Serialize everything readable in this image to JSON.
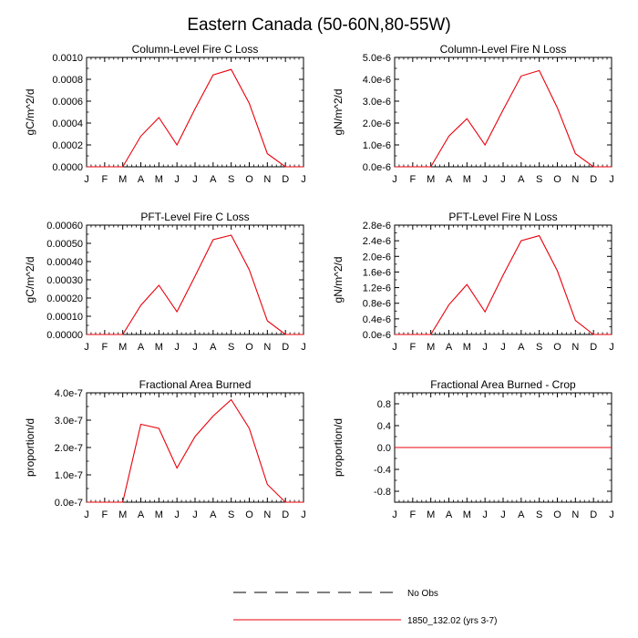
{
  "figure": {
    "title": "Eastern Canada (50-60N,80-55W)"
  },
  "month_labels": [
    "J",
    "F",
    "M",
    "A",
    "M",
    "J",
    "J",
    "A",
    "S",
    "O",
    "N",
    "D",
    "J"
  ],
  "legend": [
    {
      "label": "No Obs",
      "style": "dashed",
      "color": "#000000"
    },
    {
      "label": "1850_132.02 (yrs 3-7)",
      "style": "solid",
      "color": "#e8000b"
    }
  ],
  "chart_data": [
    {
      "type": "line",
      "title": "Column-Level Fire C Loss",
      "ylabel": "gC/m^2/d",
      "ylim": [
        0,
        0.001
      ],
      "yticks": [
        0,
        0.0002,
        0.0004,
        0.0006,
        0.0008,
        0.001
      ],
      "ytick_labels": [
        "0.0000",
        "0.0002",
        "0.0004",
        "0.0006",
        "0.0008",
        "0.0010"
      ],
      "x": [
        0,
        1,
        2,
        3,
        4,
        5,
        6,
        7,
        8,
        9,
        10,
        11,
        12
      ],
      "series": [
        {
          "color": "#e8000b",
          "values": [
            0,
            0,
            0,
            0.00028,
            0.00045,
            0.0002,
            0.00053,
            0.00084,
            0.00089,
            0.00058,
            0.00012,
            0,
            0
          ]
        }
      ]
    },
    {
      "type": "line",
      "title": "Column-Level Fire N Loss",
      "ylabel": "gN/m^2/d",
      "ylim": [
        0,
        5e-06
      ],
      "yticks": [
        0,
        1e-06,
        2e-06,
        3e-06,
        4e-06,
        5e-06
      ],
      "ytick_labels": [
        "0.0e-6",
        "1.0e-6",
        "2.0e-6",
        "3.0e-6",
        "4.0e-6",
        "5.0e-6"
      ],
      "x": [
        0,
        1,
        2,
        3,
        4,
        5,
        6,
        7,
        8,
        9,
        10,
        11,
        12
      ],
      "series": [
        {
          "color": "#e8000b",
          "values": [
            0,
            0,
            0,
            1.4e-06,
            2.2e-06,
            1e-06,
            2.6e-06,
            4.15e-06,
            4.4e-06,
            2.7e-06,
            6e-07,
            0,
            0
          ]
        }
      ]
    },
    {
      "type": "line",
      "title": "PFT-Level Fire C Loss",
      "ylabel": "gC/m^2/d",
      "ylim": [
        0,
        0.0006
      ],
      "yticks": [
        0,
        0.0001,
        0.0002,
        0.0003,
        0.0004,
        0.0005,
        0.0006
      ],
      "ytick_labels": [
        "0.00000",
        "0.00010",
        "0.00020",
        "0.00030",
        "0.00040",
        "0.00050",
        "0.00060"
      ],
      "x": [
        0,
        1,
        2,
        3,
        4,
        5,
        6,
        7,
        8,
        9,
        10,
        11,
        12
      ],
      "series": [
        {
          "color": "#e8000b",
          "values": [
            0,
            0,
            0,
            0.00016,
            0.00027,
            0.000125,
            0.00032,
            0.00052,
            0.000545,
            0.000355,
            7.5e-05,
            0,
            0
          ]
        }
      ]
    },
    {
      "type": "line",
      "title": "PFT-Level Fire N Loss",
      "ylabel": "gN/m^2/d",
      "ylim": [
        0,
        2.8e-06
      ],
      "yticks": [
        0,
        4e-07,
        8e-07,
        1.2e-06,
        1.6e-06,
        2e-06,
        2.4e-06,
        2.8e-06
      ],
      "ytick_labels": [
        "0.0e-6",
        "0.4e-6",
        "0.8e-6",
        "1.2e-6",
        "1.6e-6",
        "2.0e-6",
        "2.4e-6",
        "2.8e-6"
      ],
      "x": [
        0,
        1,
        2,
        3,
        4,
        5,
        6,
        7,
        8,
        9,
        10,
        11,
        12
      ],
      "series": [
        {
          "color": "#e8000b",
          "values": [
            0,
            0,
            0,
            7.6e-07,
            1.28e-06,
            5.8e-07,
            1.52e-06,
            2.4e-06,
            2.53e-06,
            1.63e-06,
            3.6e-07,
            0,
            0
          ]
        }
      ]
    },
    {
      "type": "line",
      "title": "Fractional Area Burned",
      "ylabel": "proportion/d",
      "ylim": [
        0,
        4e-07
      ],
      "yticks": [
        0,
        1e-07,
        2e-07,
        3e-07,
        4e-07
      ],
      "ytick_labels": [
        "0.0e-7",
        "1.0e-7",
        "2.0e-7",
        "3.0e-7",
        "4.0e-7"
      ],
      "x": [
        0,
        1,
        2,
        3,
        4,
        5,
        6,
        7,
        8,
        9,
        10,
        11,
        12
      ],
      "series": [
        {
          "color": "#e8000b",
          "values": [
            0,
            0,
            0,
            2.85e-07,
            2.7e-07,
            1.25e-07,
            2.4e-07,
            3.15e-07,
            3.75e-07,
            2.7e-07,
            6.5e-08,
            0,
            0
          ]
        }
      ]
    },
    {
      "type": "line",
      "title": "Fractional Area Burned - Crop",
      "ylabel": "proportion/d",
      "ylim": [
        -1,
        1
      ],
      "yticks": [
        -0.8,
        -0.4,
        0,
        0.4,
        0.8
      ],
      "ytick_labels": [
        "-0.8",
        "-0.4",
        "0.0",
        "0.4",
        "0.8"
      ],
      "x": [
        0,
        1,
        2,
        3,
        4,
        5,
        6,
        7,
        8,
        9,
        10,
        11,
        12
      ],
      "series": [
        {
          "color": "#e8000b",
          "values": [
            0,
            0,
            0,
            0,
            0,
            0,
            0,
            0,
            0,
            0,
            0,
            0,
            0
          ]
        }
      ]
    }
  ]
}
